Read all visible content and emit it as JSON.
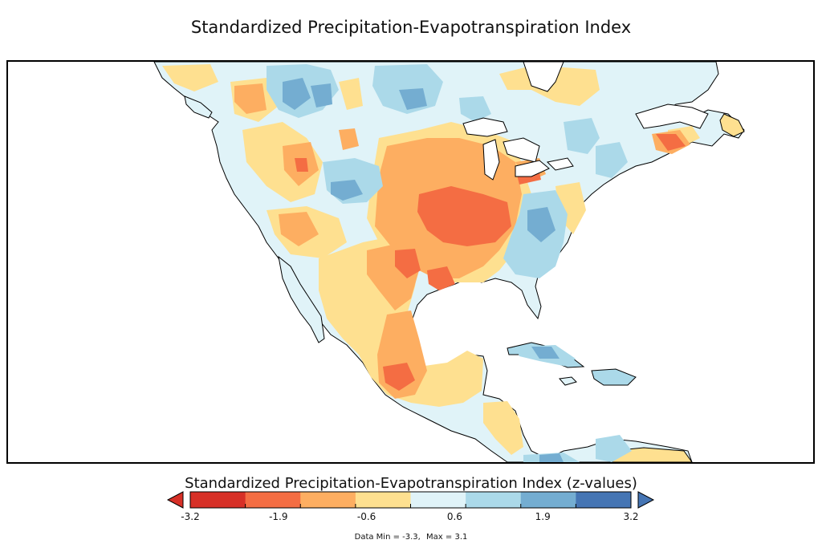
{
  "map": {
    "title": "Standardized Precipitation-Evapotranspiration Index",
    "region": "North America",
    "land_background_color": "#ffffff",
    "coastline_color": "#000000"
  },
  "legend": {
    "title": "Standardized Precipitation-Evapotranspiration Index (z-values)",
    "unit": "z-values",
    "bins": [
      {
        "from": -3.2,
        "to": -2.55,
        "color": "#d73027"
      },
      {
        "from": -2.55,
        "to": -1.9,
        "color": "#f46d43"
      },
      {
        "from": -1.9,
        "to": -1.25,
        "color": "#fdae61"
      },
      {
        "from": -1.25,
        "to": -0.6,
        "color": "#fee090"
      },
      {
        "from": -0.6,
        "to": 0.6,
        "color": "#ffffff"
      },
      {
        "from": 0.6,
        "to": 1.25,
        "color": "#e0f3f8"
      },
      {
        "from": 1.25,
        "to": 1.9,
        "color": "#abd9e9"
      },
      {
        "from": 1.9,
        "to": 2.55,
        "color": "#74add1"
      },
      {
        "from": 2.55,
        "to": 3.2,
        "color": "#4575b4"
      }
    ],
    "colors": [
      "#d73027",
      "#f46d43",
      "#fdae61",
      "#fee090",
      "#e0f3f8",
      "#abd9e9",
      "#74add1",
      "#4575b4"
    ],
    "labeled_ticks": [
      "-3.2",
      "-1.9",
      "-0.6",
      "0.6",
      "1.9",
      "3.2"
    ],
    "extend_low_color": "#d73027",
    "extend_high_color": "#4575b4"
  },
  "data_range": {
    "min_label": "Data Min = -3.3,",
    "max_label": "Max = 3.1"
  }
}
